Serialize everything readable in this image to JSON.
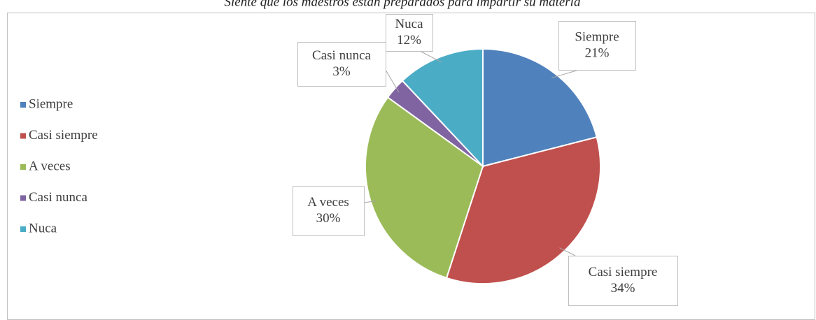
{
  "chart_data": {
    "type": "pie",
    "title": "Siente que los maestros están preparados para impartir su materia",
    "categories": [
      "Siempre",
      "Casi siempre",
      "A veces",
      "Casi nunca",
      "Nuca"
    ],
    "values": [
      21,
      34,
      30,
      3,
      12
    ],
    "value_labels": [
      "21%",
      "34%",
      "30%",
      "3%",
      "12%"
    ],
    "colors": [
      "#4f81bd",
      "#c0504d",
      "#9bbb59",
      "#8064a2",
      "#4bacc6"
    ],
    "legend": "left"
  }
}
